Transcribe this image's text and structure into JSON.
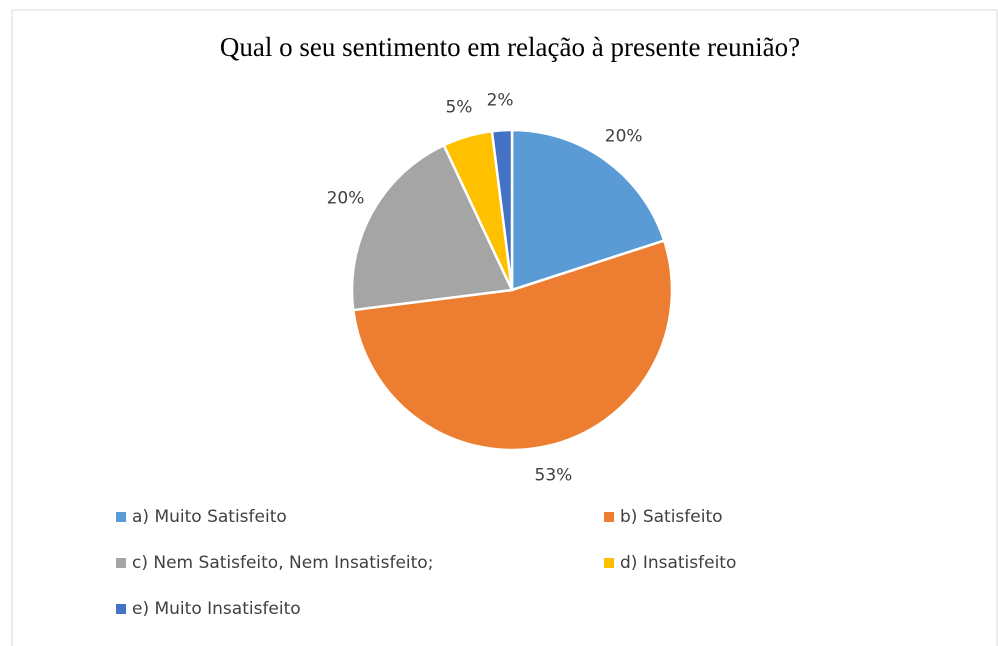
{
  "chart_data": {
    "type": "pie",
    "title": "Qual o seu sentimento em relação à presente reunião?",
    "categories": [
      "a) Muito Satisfeito",
      "b) Satisfeito",
      "c) Nem Satisfeito, Nem Insatisfeito;",
      "d) Insatisfeito",
      "e) Muito Insatisfeito"
    ],
    "values": [
      20,
      53,
      20,
      5,
      2
    ],
    "value_labels": [
      "20%",
      "53%",
      "20%",
      "5%",
      "2%"
    ],
    "colors": [
      "#5b9bd5",
      "#ed7d31",
      "#a5a5a5",
      "#ffc000",
      "#4472c4"
    ]
  }
}
